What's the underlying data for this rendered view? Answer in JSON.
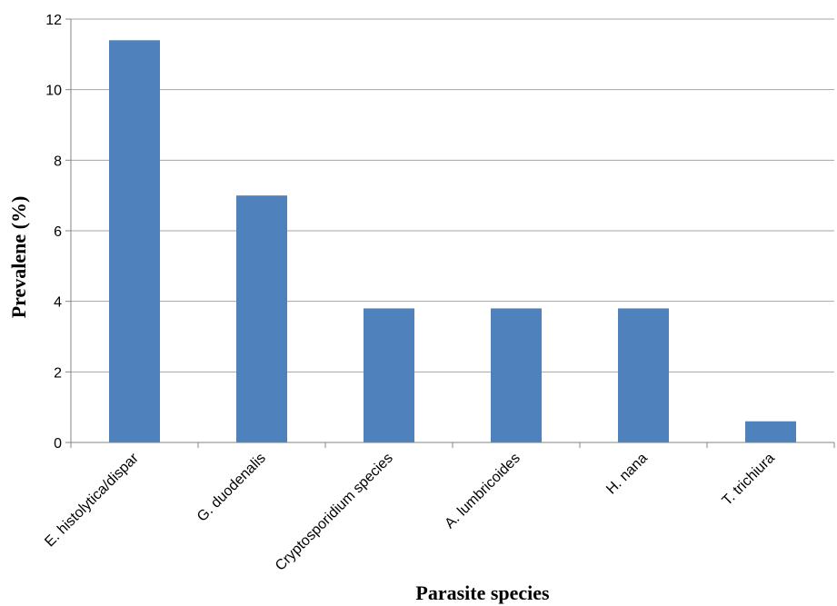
{
  "chart_data": {
    "type": "bar",
    "title": "",
    "xlabel": "Parasite species",
    "ylabel": "Prevalene (%)",
    "categories": [
      "E. histolytica/dispar",
      "G. duodenalis",
      "Cryptosporidium species",
      "A. lumbricoides",
      "H. nana",
      "T. trichiura"
    ],
    "values": [
      11.4,
      7.0,
      3.8,
      3.8,
      3.8,
      0.6
    ],
    "ylim": [
      0,
      12
    ],
    "yticks": [
      "0",
      "2",
      "4",
      "6",
      "8",
      "10",
      "12"
    ],
    "grid": true,
    "legend": "none",
    "colors": {
      "bar": "#4f81bd",
      "grid": "#a6a6a6",
      "axis": "#868686"
    }
  }
}
